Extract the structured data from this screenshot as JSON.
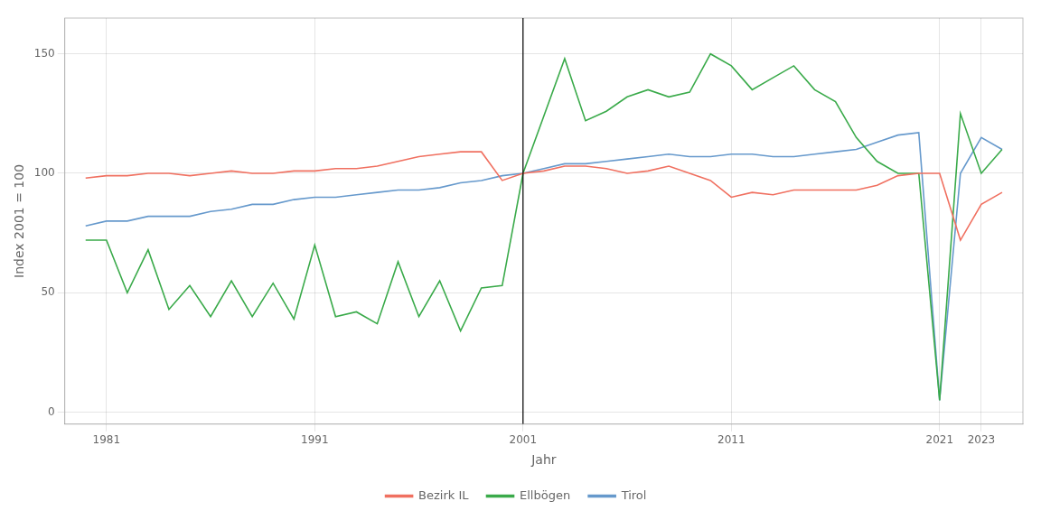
{
  "chart_data": {
    "type": "line",
    "xlabel": "Jahr",
    "ylabel": "Index 2001 = 100",
    "x": [
      1980,
      1981,
      1982,
      1983,
      1984,
      1985,
      1986,
      1987,
      1988,
      1989,
      1990,
      1991,
      1992,
      1993,
      1994,
      1995,
      1996,
      1997,
      1998,
      1999,
      2000,
      2001,
      2002,
      2003,
      2004,
      2005,
      2006,
      2007,
      2008,
      2009,
      2010,
      2011,
      2012,
      2013,
      2014,
      2015,
      2016,
      2017,
      2018,
      2019,
      2020,
      2021,
      2022,
      2023,
      2024
    ],
    "series": [
      {
        "name": "Bezirk IL",
        "color": "#F07060",
        "values": [
          98,
          99,
          99,
          100,
          100,
          99,
          100,
          101,
          100,
          100,
          101,
          101,
          102,
          102,
          103,
          105,
          107,
          108,
          109,
          109,
          97,
          100,
          101,
          103,
          103,
          102,
          100,
          101,
          103,
          100,
          97,
          90,
          92,
          91,
          93,
          93,
          93,
          93,
          95,
          99,
          100,
          100,
          72,
          87,
          92
        ]
      },
      {
        "name": "Ellbögen",
        "color": "#3AAA4A",
        "values": [
          72,
          72,
          50,
          68,
          43,
          53,
          40,
          55,
          40,
          54,
          39,
          70,
          40,
          42,
          37,
          63,
          40,
          55,
          34,
          52,
          53,
          100,
          124,
          148,
          122,
          126,
          132,
          135,
          132,
          134,
          150,
          145,
          135,
          140,
          145,
          135,
          130,
          115,
          105,
          100,
          100,
          5,
          125,
          100,
          110
        ]
      },
      {
        "name": "Tirol",
        "color": "#6699CC",
        "values": [
          78,
          80,
          80,
          82,
          82,
          82,
          84,
          85,
          87,
          87,
          89,
          90,
          90,
          91,
          92,
          93,
          93,
          94,
          96,
          97,
          99,
          100,
          102,
          104,
          104,
          105,
          106,
          107,
          108,
          107,
          107,
          108,
          108,
          107,
          107,
          108,
          109,
          110,
          113,
          116,
          117,
          5,
          100,
          115,
          110
        ]
      }
    ],
    "xlim": [
      1979,
      2025
    ],
    "xticks": [
      1981,
      1991,
      2001,
      2011,
      2021,
      2023
    ],
    "ylim": [
      -5,
      165
    ],
    "yticks": [
      0,
      50,
      100,
      150
    ],
    "vline": 2001,
    "grid": true,
    "legend": "bottom"
  }
}
